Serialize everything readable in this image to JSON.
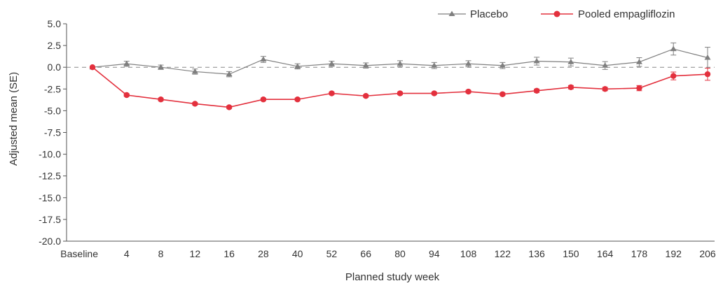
{
  "chart_data": {
    "type": "line",
    "xlabel": "Planned study week",
    "ylabel": "Adjusted mean (SE)",
    "categories": [
      "Baseline",
      "4",
      "8",
      "12",
      "16",
      "28",
      "40",
      "52",
      "66",
      "80",
      "94",
      "108",
      "122",
      "136",
      "150",
      "164",
      "178",
      "192",
      "206"
    ],
    "ylim": [
      -20.0,
      5.0
    ],
    "yticks": [
      "5.0",
      "2.5",
      "0.0",
      "-2.5",
      "-5.0",
      "-7.5",
      "-10.0",
      "-12.5",
      "-15.0",
      "-17.5",
      "-20.0"
    ],
    "reference_line": 0,
    "legend_position": "top-right",
    "grid": false,
    "series": [
      {
        "name": "Placebo",
        "color": "#7f7f7f",
        "marker": "triangle",
        "values": [
          0.0,
          0.4,
          0.0,
          -0.5,
          -0.8,
          0.9,
          0.1,
          0.4,
          0.2,
          0.4,
          0.2,
          0.4,
          0.2,
          0.7,
          0.6,
          0.2,
          0.6,
          2.1,
          1.1
        ],
        "se": [
          0.0,
          0.3,
          0.25,
          0.3,
          0.3,
          0.35,
          0.3,
          0.3,
          0.3,
          0.35,
          0.35,
          0.35,
          0.35,
          0.45,
          0.45,
          0.45,
          0.5,
          0.7,
          1.2
        ]
      },
      {
        "name": "Pooled empagliflozin",
        "color": "#e3303d",
        "marker": "circle",
        "values": [
          0.0,
          -3.2,
          -3.7,
          -4.2,
          -4.6,
          -3.7,
          -3.7,
          -3.0,
          -3.3,
          -3.0,
          -3.0,
          -2.8,
          -3.1,
          -2.7,
          -2.3,
          -2.5,
          -2.4,
          -1.0,
          -0.8
        ],
        "se": [
          0.0,
          0.15,
          0.15,
          0.15,
          0.15,
          0.15,
          0.15,
          0.15,
          0.15,
          0.15,
          0.15,
          0.15,
          0.15,
          0.2,
          0.2,
          0.2,
          0.3,
          0.45,
          0.7
        ]
      }
    ]
  }
}
